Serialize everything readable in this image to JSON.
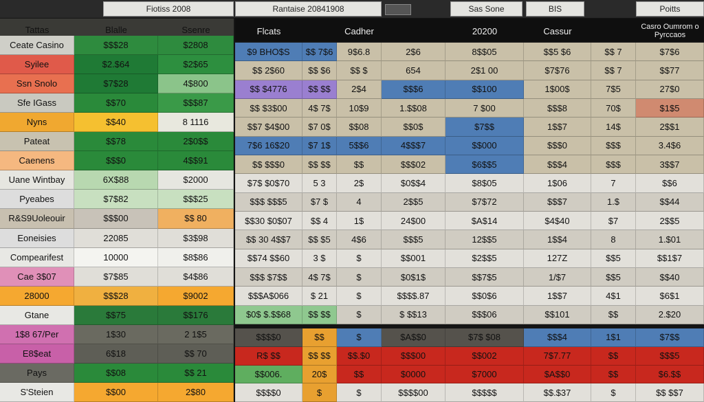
{
  "tabs": [
    "Fiotiss 2008",
    "Rantaise 20841908",
    "Sas Sone",
    "BIS",
    "Poitts"
  ],
  "left": {
    "header": [
      "Tattas",
      "Blalle",
      "Ssenre"
    ],
    "rows": [
      {
        "label": "Ceate Casino",
        "values": [
          "$$$28",
          "$2808"
        ],
        "colors": [
          "#cfcfc8",
          "#2e8b3e",
          "#2e8b3e"
        ]
      },
      {
        "label": "Syilee",
        "values": [
          "$2.$64",
          "$2$65"
        ],
        "colors": [
          "#e05a4a",
          "#1f7a35",
          "#2d8f3f"
        ]
      },
      {
        "label": "Ssn Snolo",
        "values": [
          "$7$28",
          "4$800"
        ],
        "colors": [
          "#e87050",
          "#1f7a35",
          "#8bc48a"
        ]
      },
      {
        "label": "Sfe IGass",
        "values": [
          "$$70",
          "$$$87"
        ],
        "colors": [
          "#c9c9c0",
          "#2a8a3a",
          "#3a9a48"
        ]
      },
      {
        "label": "Nyns",
        "values": [
          "$$40",
          "8 1116"
        ],
        "colors": [
          "#f0a830",
          "#f5c030",
          "#e8e8de"
        ]
      },
      {
        "label": "Pateat",
        "values": [
          "$$78",
          "2$0$$"
        ],
        "colors": [
          "#c8c2b0",
          "#2a8a3a",
          "#2a8a3a"
        ]
      },
      {
        "label": "Caenens",
        "values": [
          "$$$0",
          "4$$91"
        ],
        "colors": [
          "#f5b880",
          "#2a8a3a",
          "#2a8a3a"
        ]
      },
      {
        "label": "Uane Wintbay",
        "values": [
          "6X$88",
          "$2000"
        ],
        "colors": [
          "#e6e6e0",
          "#b8d8b0",
          "#e6e6e0"
        ]
      },
      {
        "label": "Pyeabes",
        "values": [
          "$7$82",
          "$$$25"
        ],
        "colors": [
          "#dddddd",
          "#c8e0c0",
          "#c8e0c0"
        ]
      },
      {
        "label": "R&S9Uoleouir",
        "values": [
          "$$$00",
          "$$ 80"
        ],
        "colors": [
          "#c8c0b0",
          "#c8c2b8",
          "#f0b060"
        ]
      },
      {
        "label": "Eoneisies",
        "values": [
          "22085",
          "$3$98"
        ],
        "colors": [
          "#dddddd",
          "#e0ded8",
          "#e0ded8"
        ]
      },
      {
        "label": "Compearifest",
        "values": [
          "10000",
          "$8$86"
        ],
        "colors": [
          "#e8e8e4",
          "#f4f4f0",
          "#f0f0ec"
        ]
      },
      {
        "label": "Cae 3$07",
        "values": [
          "$7$85",
          "$4$86"
        ],
        "colors": [
          "#e090b8",
          "#e0ded8",
          "#e0ded8"
        ]
      },
      {
        "label": "28000",
        "values": [
          "$$$28",
          "$9002"
        ],
        "colors": [
          "#f5a830",
          "#f0b040",
          "#f5a830"
        ]
      },
      {
        "label": "Gtane",
        "values": [
          "$$75",
          "$$176"
        ],
        "colors": [
          "#e8e8e4",
          "#2a7a3a",
          "#2a7a3a"
        ]
      },
      {
        "label": "1$8 67/Per",
        "values": [
          "1$30",
          "2 1$5"
        ],
        "colors": [
          "#d070b0",
          "#6a6a60",
          "#6a6a60"
        ]
      },
      {
        "label": "E8$eat",
        "values": [
          "6$18",
          "$$ 70"
        ],
        "colors": [
          "#c860a8",
          "#5e5e56",
          "#5e5e56"
        ]
      },
      {
        "label": "Pays",
        "values": [
          "$$08",
          "$$ 21"
        ],
        "colors": [
          "#6a6a62",
          "#2a8a3a",
          "#2a8a3a"
        ]
      },
      {
        "label": "S'Steien",
        "values": [
          "$$00",
          "2$80"
        ],
        "colors": [
          "#e8e8e4",
          "#f5a830",
          "#f5a830"
        ]
      }
    ]
  },
  "right": {
    "header": [
      "Flcats",
      "Cadher",
      "20200",
      "Cassur",
      "Casro Oumrom o Pyrccaos"
    ],
    "upper": [
      {
        "values": [
          "$9 BHO$S",
          "$$ 7$6",
          "9$6.8",
          "2$6",
          "8$$05",
          "$$5 $6",
          "$$ 7",
          "$7$6"
        ],
        "colors": [
          "#4f7db5",
          "#4f7db5",
          "#c9c0a8",
          "#c9c0a8",
          "#c9c0a8",
          "#c9c0a8",
          "#c9c0a8",
          "#c9c0a8"
        ]
      },
      {
        "values": [
          "$$ 2$60",
          "$$ $6",
          "$$ $",
          "654",
          "2$1 00",
          "$7$76",
          "$$ 7",
          "$$77"
        ],
        "colors": [
          "#c9c0a8",
          "#c9c0a8",
          "#c9c0a8",
          "#c9c0a8",
          "#c9c0a8",
          "#c9c0a8",
          "#c9c0a8",
          "#c9c0a8"
        ]
      },
      {
        "values": [
          "$$ $4776",
          "$$ $$",
          "2$4",
          "$$$6",
          "$$100",
          "1$00$",
          "7$5",
          "27$0"
        ],
        "colors": [
          "#9a7fd0",
          "#9a7fd0",
          "#c9c0a8",
          "#4f7db5",
          "#4f7db5",
          "#c9c0a8",
          "#c9c0a8",
          "#c9c0a8"
        ]
      },
      {
        "values": [
          "$$ $3$00",
          "4$ 7$",
          "10$9",
          "1.$$08",
          "7 $00",
          "$$$8",
          "70$",
          "$1$5"
        ],
        "colors": [
          "#c9c0a8",
          "#c9c0a8",
          "#c9c0a8",
          "#c9c0a8",
          "#c9c0a8",
          "#c9c0a8",
          "#c9c0a8",
          "#d08a70"
        ]
      },
      {
        "values": [
          "$$7 $4$00",
          "$7 0$",
          "$$08",
          "$$0$",
          "$7$$",
          "1$$7",
          "14$",
          "2$$1"
        ],
        "colors": [
          "#c9c0a8",
          "#c9c0a8",
          "#c9c0a8",
          "#c9c0a8",
          "#4f7db5",
          "#c9c0a8",
          "#c9c0a8",
          "#c9c0a8"
        ]
      },
      {
        "values": [
          "7$6 16$20",
          "$7 1$",
          "5$$6",
          "4$$$7",
          "$$000",
          "$$$0",
          "$$$",
          "3.4$6"
        ],
        "colors": [
          "#4f7db5",
          "#4f7db5",
          "#4f7db5",
          "#4f7db5",
          "#4f7db5",
          "#c9c0a8",
          "#c9c0a8",
          "#c9c0a8"
        ]
      },
      {
        "values": [
          "$$ $$$0",
          "$$ $$",
          "$$",
          "$$$02",
          "$6$$5",
          "$$$4",
          "$$$",
          "3$$7"
        ],
        "colors": [
          "#c9c0a8",
          "#c9c0a8",
          "#c9c0a8",
          "#c9c0a8",
          "#4f7db5",
          "#c9c0a8",
          "#c9c0a8",
          "#c9c0a8"
        ]
      },
      {
        "values": [
          "$7$ $0$70",
          "5 3",
          "2$",
          "$0$$4",
          "$8$05",
          "1$06",
          "7",
          "$$6"
        ],
        "colors": [
          "#e2e0da",
          "#e2e0da",
          "#e2e0da",
          "#e2e0da",
          "#e2e0da",
          "#e2e0da",
          "#e2e0da",
          "#e2e0da"
        ]
      },
      {
        "values": [
          "$$$ $$$5",
          "$7 $",
          "4",
          "2$$5",
          "$7$72",
          "$$$7",
          "1.$",
          "$$44"
        ],
        "colors": [
          "#d0ccc2",
          "#d0ccc2",
          "#d0ccc2",
          "#d0ccc2",
          "#d0ccc2",
          "#d0ccc2",
          "#d0ccc2",
          "#d0ccc2"
        ]
      },
      {
        "values": [
          "$$30 $0$07",
          "$$ 4",
          "1$",
          "24$00",
          "$A$14",
          "$4$40",
          "$7",
          "2$$5"
        ],
        "colors": [
          "#e2e0da",
          "#e2e0da",
          "#e2e0da",
          "#e2e0da",
          "#e2e0da",
          "#e2e0da",
          "#e2e0da",
          "#e2e0da"
        ]
      },
      {
        "values": [
          "$$ 30 4$$7",
          "$$ $5",
          "4$6",
          "$$$5",
          "12$$5",
          "1$$4",
          "8",
          "1.$01"
        ],
        "colors": [
          "#d0ccc2",
          "#d0ccc2",
          "#d0ccc2",
          "#d0ccc2",
          "#d0ccc2",
          "#d0ccc2",
          "#d0ccc2",
          "#d0ccc2"
        ]
      },
      {
        "values": [
          "$$74 $$60",
          "3 $",
          "$",
          "$$001",
          "$2$$5",
          "127Z",
          "$$5",
          "$$1$7"
        ],
        "colors": [
          "#e2e0da",
          "#e2e0da",
          "#e2e0da",
          "#e2e0da",
          "#e2e0da",
          "#e2e0da",
          "#e2e0da",
          "#e2e0da"
        ]
      },
      {
        "values": [
          "$$$ $7$$",
          "4$ 7$",
          "$",
          "$0$1$",
          "$$7$5",
          "1/$7",
          "$$5",
          "$$40"
        ],
        "colors": [
          "#d0ccc2",
          "#d0ccc2",
          "#d0ccc2",
          "#d0ccc2",
          "#d0ccc2",
          "#d0ccc2",
          "#d0ccc2",
          "#d0ccc2"
        ]
      },
      {
        "values": [
          "$$$A$066",
          "$ 21",
          "$",
          "$$$$.87",
          "$$0$6",
          "1$$7",
          "4$1",
          "$6$1"
        ],
        "colors": [
          "#e2e0da",
          "#e2e0da",
          "#e2e0da",
          "#e2e0da",
          "#e2e0da",
          "#e2e0da",
          "#e2e0da",
          "#e2e0da"
        ]
      },
      {
        "values": [
          "$0$ $.$$68",
          "$$ $$",
          "$",
          "$ $$13",
          "$$$06",
          "$$101",
          "$$",
          "2.$20"
        ],
        "colors": [
          "#8fc88f",
          "#8fc88f",
          "#d0ccc2",
          "#d0ccc2",
          "#d0ccc2",
          "#d0ccc2",
          "#d0ccc2",
          "#d0ccc2"
        ]
      }
    ],
    "lower": [
      {
        "values": [
          "$$$$0",
          "$$",
          "$",
          "$A$$0",
          "$7$ $08",
          "$$$4",
          "1$1",
          "$7$$"
        ],
        "colors": [
          "#55524c",
          "#e8a030",
          "#4f7db5",
          "#55524c",
          "#55524c",
          "#4f7db5",
          "#4f7db5",
          "#4f7db5"
        ]
      },
      {
        "values": [
          "R$ $$",
          "$$ $$",
          "$$.$0",
          "$$$00",
          "$$002",
          "7$7.77",
          "$$",
          "$$$5"
        ],
        "colors": [
          "#c8281e",
          "#e8a030",
          "#c8281e",
          "#c8281e",
          "#c8281e",
          "#c8281e",
          "#c8281e",
          "#c8281e"
        ]
      },
      {
        "values": [
          "$$006.",
          "20$",
          "$$",
          "$0000",
          "$7000",
          "$A$$0",
          "$$",
          "$6.$$"
        ],
        "colors": [
          "#5fae5f",
          "#e8a030",
          "#c8281e",
          "#c8281e",
          "#c8281e",
          "#c8281e",
          "#c8281e",
          "#c8281e"
        ]
      },
      {
        "values": [
          "$$$$0",
          "$",
          "$",
          "$$$$00",
          "$$$$$",
          "$$.$37",
          "$",
          "$$ $$7"
        ],
        "colors": [
          "#e2e0da",
          "#e8a030",
          "#e2e0da",
          "#e2e0da",
          "#e2e0da",
          "#e2e0da",
          "#e2e0da",
          "#e2e0da"
        ]
      }
    ]
  }
}
